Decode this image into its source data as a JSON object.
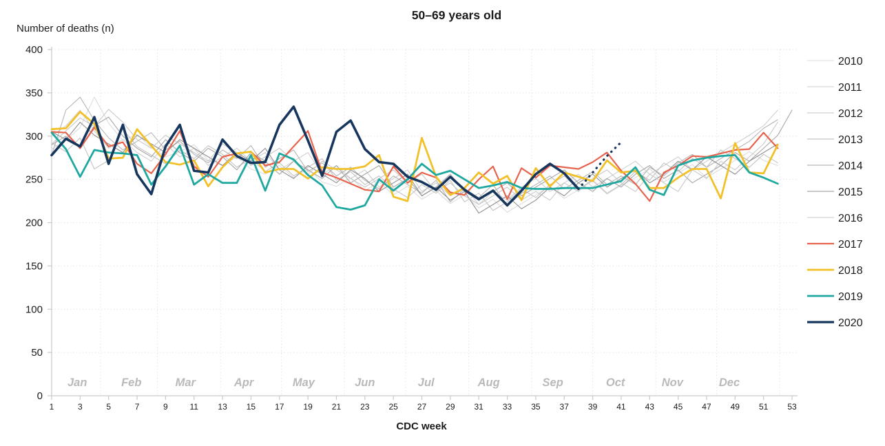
{
  "chart_data": {
    "type": "line",
    "title": "50–69 years old",
    "ylabel": "Number of deaths (n)",
    "xlabel": "CDC week",
    "ylim": [
      0,
      400
    ],
    "xlim": [
      1,
      53
    ],
    "y_ticks": [
      0,
      50,
      100,
      150,
      200,
      250,
      300,
      350,
      400
    ],
    "x_ticks": [
      1,
      3,
      5,
      7,
      9,
      11,
      13,
      15,
      17,
      19,
      21,
      23,
      25,
      27,
      29,
      31,
      33,
      35,
      37,
      39,
      41,
      43,
      45,
      47,
      49,
      51,
      53
    ],
    "grid": "dotted",
    "legend_position": "right",
    "months": [
      {
        "label": "Jan",
        "center_week": 2.8
      },
      {
        "label": "Feb",
        "center_week": 6.6
      },
      {
        "label": "Mar",
        "center_week": 10.4
      },
      {
        "label": "Apr",
        "center_week": 14.5
      },
      {
        "label": "May",
        "center_week": 18.7
      },
      {
        "label": "Jun",
        "center_week": 23.0
      },
      {
        "label": "Jul",
        "center_week": 27.3
      },
      {
        "label": "Aug",
        "center_week": 31.7
      },
      {
        "label": "Sep",
        "center_week": 36.2
      },
      {
        "label": "Oct",
        "center_week": 40.6
      },
      {
        "label": "Nov",
        "center_week": 44.6
      },
      {
        "label": "Dec",
        "center_week": 48.6
      }
    ],
    "month_boundary_weeks": [
      4.43,
      8.43,
      12.86,
      17.14,
      21.57,
      25.86,
      30.29,
      34.71,
      39.0,
      43.43,
      47.71,
      52.14
    ],
    "series": [
      {
        "name": "2010",
        "color": "#dcdcdc",
        "line_width": 1.1,
        "start_week": 1,
        "values": [
          285,
          295,
          310,
          345,
          315,
          295,
          302,
          287,
          276,
          282,
          290,
          272,
          266,
          276,
          262,
          256,
          266,
          252,
          262,
          247,
          242,
          252,
          237,
          247,
          232,
          242,
          227,
          237,
          222,
          232,
          217,
          227,
          212,
          222,
          232,
          242,
          228,
          238,
          248,
          233,
          243,
          252,
          262,
          247,
          257,
          267,
          252,
          262,
          272,
          282,
          272,
          266
        ]
      },
      {
        "name": "2011",
        "color": "#cfcfcf",
        "line_width": 1.1,
        "start_week": 1,
        "values": [
          300,
          312,
          330,
          306,
          286,
          296,
          281,
          271,
          291,
          276,
          286,
          266,
          276,
          286,
          271,
          281,
          261,
          271,
          281,
          256,
          266,
          251,
          261,
          241,
          251,
          261,
          236,
          246,
          231,
          241,
          221,
          236,
          226,
          241,
          251,
          236,
          246,
          256,
          241,
          251,
          261,
          271,
          256,
          266,
          276,
          261,
          271,
          281,
          291,
          301,
          312,
          330
        ]
      },
      {
        "name": "2012",
        "color": "#c3c3c3",
        "line_width": 1.1,
        "start_week": 1,
        "values": [
          292,
          282,
          298,
          262,
          272,
          308,
          288,
          278,
          268,
          284,
          274,
          289,
          279,
          264,
          274,
          259,
          269,
          254,
          264,
          274,
          249,
          259,
          244,
          254,
          239,
          229,
          244,
          234,
          249,
          224,
          234,
          214,
          224,
          239,
          229,
          244,
          254,
          239,
          249,
          234,
          244,
          259,
          249,
          269,
          259,
          274,
          264,
          284,
          274,
          264,
          279,
          269
        ]
      },
      {
        "name": "2013",
        "color": "#b5b5b5",
        "line_width": 1.1,
        "start_week": 1,
        "values": [
          278,
          330,
          345,
          318,
          298,
          284,
          294,
          304,
          284,
          294,
          279,
          269,
          284,
          274,
          289,
          264,
          274,
          284,
          259,
          269,
          254,
          264,
          249,
          239,
          254,
          244,
          234,
          249,
          224,
          239,
          229,
          244,
          219,
          234,
          244,
          254,
          239,
          249,
          259,
          244,
          254,
          244,
          264,
          254,
          269,
          279,
          264,
          274,
          284,
          294,
          309,
          319
        ]
      },
      {
        "name": "2014",
        "color": "#a6a6a6",
        "line_width": 1.1,
        "start_week": 1,
        "values": [
          290,
          300,
          286,
          312,
          322,
          300,
          286,
          276,
          296,
          281,
          271,
          286,
          276,
          261,
          281,
          271,
          256,
          271,
          261,
          251,
          266,
          246,
          256,
          266,
          241,
          251,
          231,
          241,
          256,
          236,
          226,
          236,
          246,
          231,
          241,
          251,
          261,
          246,
          236,
          251,
          241,
          256,
          266,
          251,
          261,
          246,
          256,
          266,
          281,
          271,
          286,
          301,
          330
        ]
      },
      {
        "name": "2015",
        "color": "#8f8f8f",
        "line_width": 1.1,
        "start_week": 1,
        "values": [
          305,
          296,
          316,
          301,
          291,
          281,
          301,
          291,
          281,
          296,
          286,
          276,
          266,
          281,
          271,
          286,
          261,
          251,
          266,
          256,
          246,
          261,
          251,
          236,
          246,
          256,
          231,
          241,
          226,
          236,
          211,
          221,
          231,
          216,
          226,
          241,
          231,
          246,
          256,
          241,
          251,
          261,
          246,
          256,
          271,
          261,
          276,
          266,
          256,
          271,
          281,
          291
        ]
      },
      {
        "name": "2016",
        "color": "#c8c8c8",
        "line_width": 1.1,
        "start_week": 1,
        "values": [
          291,
          306,
          321,
          311,
          331,
          316,
          296,
          286,
          301,
          291,
          281,
          271,
          291,
          281,
          266,
          276,
          286,
          271,
          256,
          271,
          261,
          251,
          241,
          251,
          261,
          246,
          256,
          236,
          246,
          231,
          221,
          231,
          241,
          226,
          236,
          226,
          246,
          236,
          251,
          261,
          246,
          236,
          256,
          246,
          236,
          261,
          251,
          271,
          261,
          276,
          291,
          316
        ]
      },
      {
        "name": "2017",
        "color": "#e8634d",
        "line_width": 2.2,
        "start_week": 1,
        "values": [
          305,
          304,
          286,
          310,
          288,
          293,
          268,
          257,
          279,
          306,
          265,
          253,
          276,
          280,
          282,
          266,
          270,
          288,
          306,
          258,
          252,
          245,
          238,
          236,
          265,
          246,
          258,
          252,
          235,
          232,
          250,
          265,
          227,
          263,
          252,
          266,
          264,
          262,
          270,
          281,
          260,
          245,
          225,
          258,
          266,
          277,
          276,
          280,
          284,
          285,
          304,
          286
        ]
      },
      {
        "name": "2018",
        "color": "#f2c029",
        "line_width": 2.8,
        "start_week": 1,
        "values": [
          308,
          309,
          328,
          314,
          274,
          275,
          308,
          289,
          270,
          267,
          272,
          242,
          264,
          280,
          282,
          258,
          262,
          262,
          251,
          264,
          262,
          262,
          265,
          278,
          230,
          225,
          298,
          253,
          232,
          240,
          258,
          245,
          254,
          226,
          263,
          242,
          258,
          253,
          248,
          272,
          258,
          260,
          240,
          240,
          252,
          262,
          262,
          228,
          292,
          258,
          257,
          290
        ]
      },
      {
        "name": "2019",
        "color": "#1fa8a0",
        "line_width": 2.8,
        "start_week": 1,
        "values": [
          304,
          285,
          253,
          284,
          281,
          280,
          278,
          244,
          265,
          289,
          244,
          256,
          246,
          246,
          278,
          237,
          280,
          273,
          255,
          243,
          218,
          215,
          220,
          250,
          237,
          250,
          268,
          255,
          260,
          250,
          240,
          243,
          247,
          240,
          239,
          239,
          240,
          240,
          240,
          244,
          248,
          264,
          238,
          232,
          266,
          272,
          275,
          277,
          278,
          258,
          252,
          245
        ]
      },
      {
        "name": "2020",
        "color": "#17365d",
        "line_width": 3.6,
        "start_week": 1,
        "values": [
          278,
          297,
          288,
          322,
          268,
          313,
          256,
          233,
          288,
          313,
          260,
          258,
          296,
          277,
          269,
          270,
          313,
          334,
          295,
          254,
          305,
          318,
          285,
          270,
          268,
          253,
          247,
          238,
          253,
          238,
          227,
          237,
          220,
          237,
          256,
          268,
          257,
          239
        ]
      }
    ],
    "projection": {
      "name": "2020 projection",
      "color": "#17365d",
      "style": "dotted",
      "line_width": 3.2,
      "start_week": 38,
      "values": [
        239,
        258,
        277,
        293
      ]
    },
    "legend": {
      "items": [
        "2010",
        "2011",
        "2012",
        "2013",
        "2014",
        "2015",
        "2016",
        "2017",
        "2018",
        "2019",
        "2020"
      ]
    }
  }
}
